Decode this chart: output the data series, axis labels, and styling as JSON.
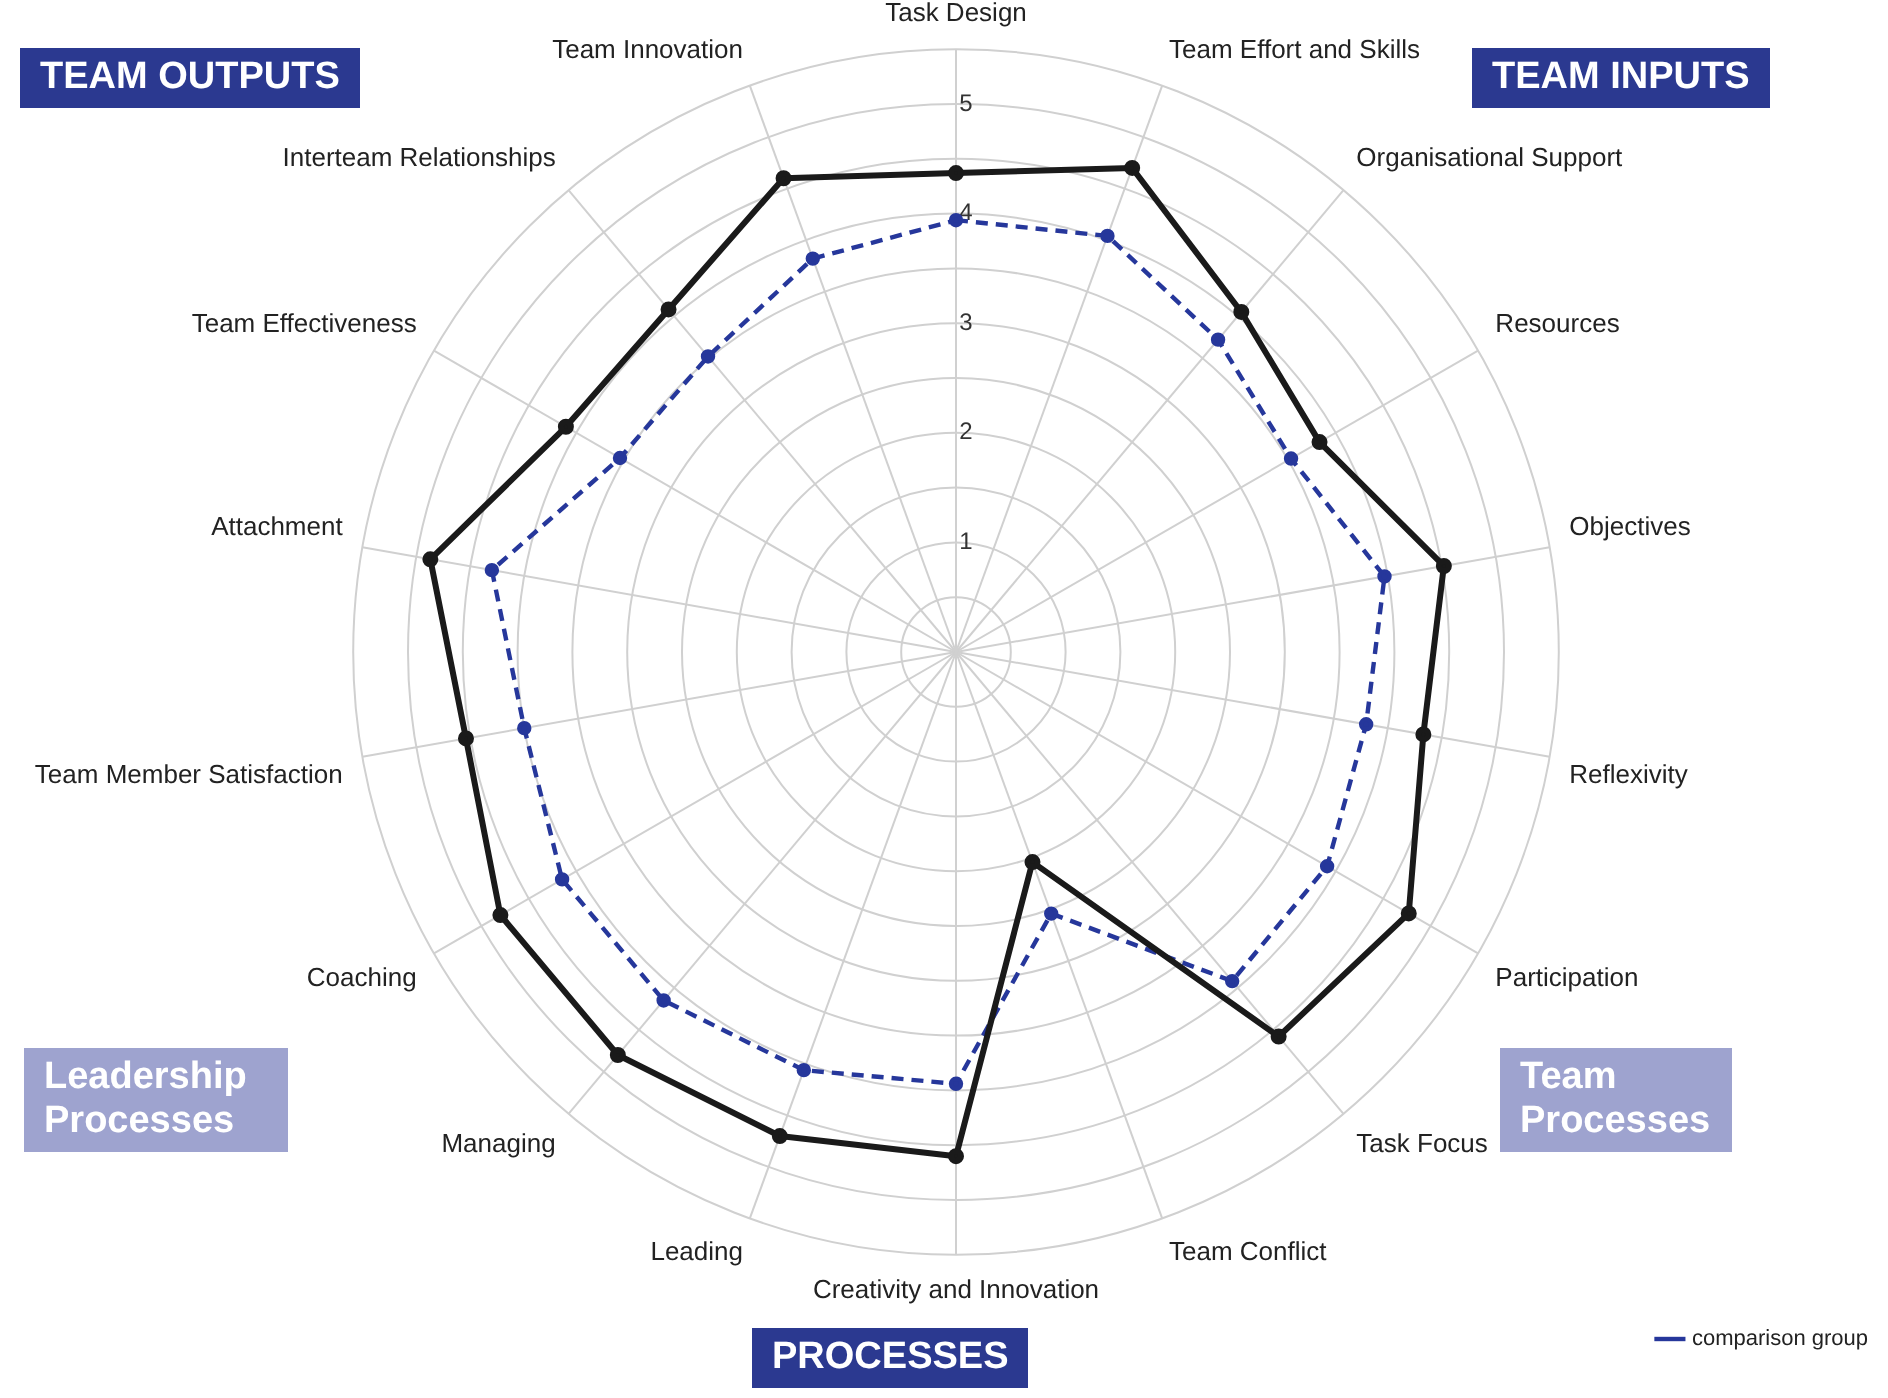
{
  "chart_data": {
    "type": "radar",
    "categories": [
      "Task Design",
      "Team Effort and Skills",
      "Organisational Support",
      "Resources",
      "Objectives",
      "Reflexivity",
      "Participation",
      "Task Focus",
      "Team Conflict",
      "Creativity and Innovation",
      "Leading",
      "Managing",
      "Coaching",
      "Team Member Satisfaction",
      "Attachment",
      "Team Effectiveness",
      "Interteam Relationships",
      "Team Innovation"
    ],
    "series": [
      {
        "color": "#1a1a1a",
        "line_style": "solid",
        "values": [
          4.37,
          4.7,
          4.05,
          3.83,
          4.52,
          4.33,
          4.77,
          4.58,
          2.04,
          4.6,
          4.7,
          4.8,
          4.8,
          4.54,
          4.87,
          4.11,
          4.08,
          4.6
        ]
      },
      {
        "name": "comparison group",
        "color": "#26379b",
        "line_style": "dashed",
        "values": [
          3.94,
          4.04,
          3.72,
          3.53,
          3.97,
          3.8,
          3.91,
          3.92,
          2.54,
          3.94,
          4.06,
          4.15,
          4.15,
          4.0,
          4.3,
          3.54,
          3.52,
          3.82
        ]
      }
    ],
    "ylim": [
      0,
      5.5
    ],
    "yticks": [
      1,
      2,
      3,
      4,
      5
    ],
    "grid": true,
    "marker": "circle",
    "legend": "bottom right",
    "annotations": [
      "TEAM OUTPUTS",
      "TEAM INPUTS",
      "Leadership Processes",
      "Team Processes",
      "PROCESSES"
    ]
  }
}
